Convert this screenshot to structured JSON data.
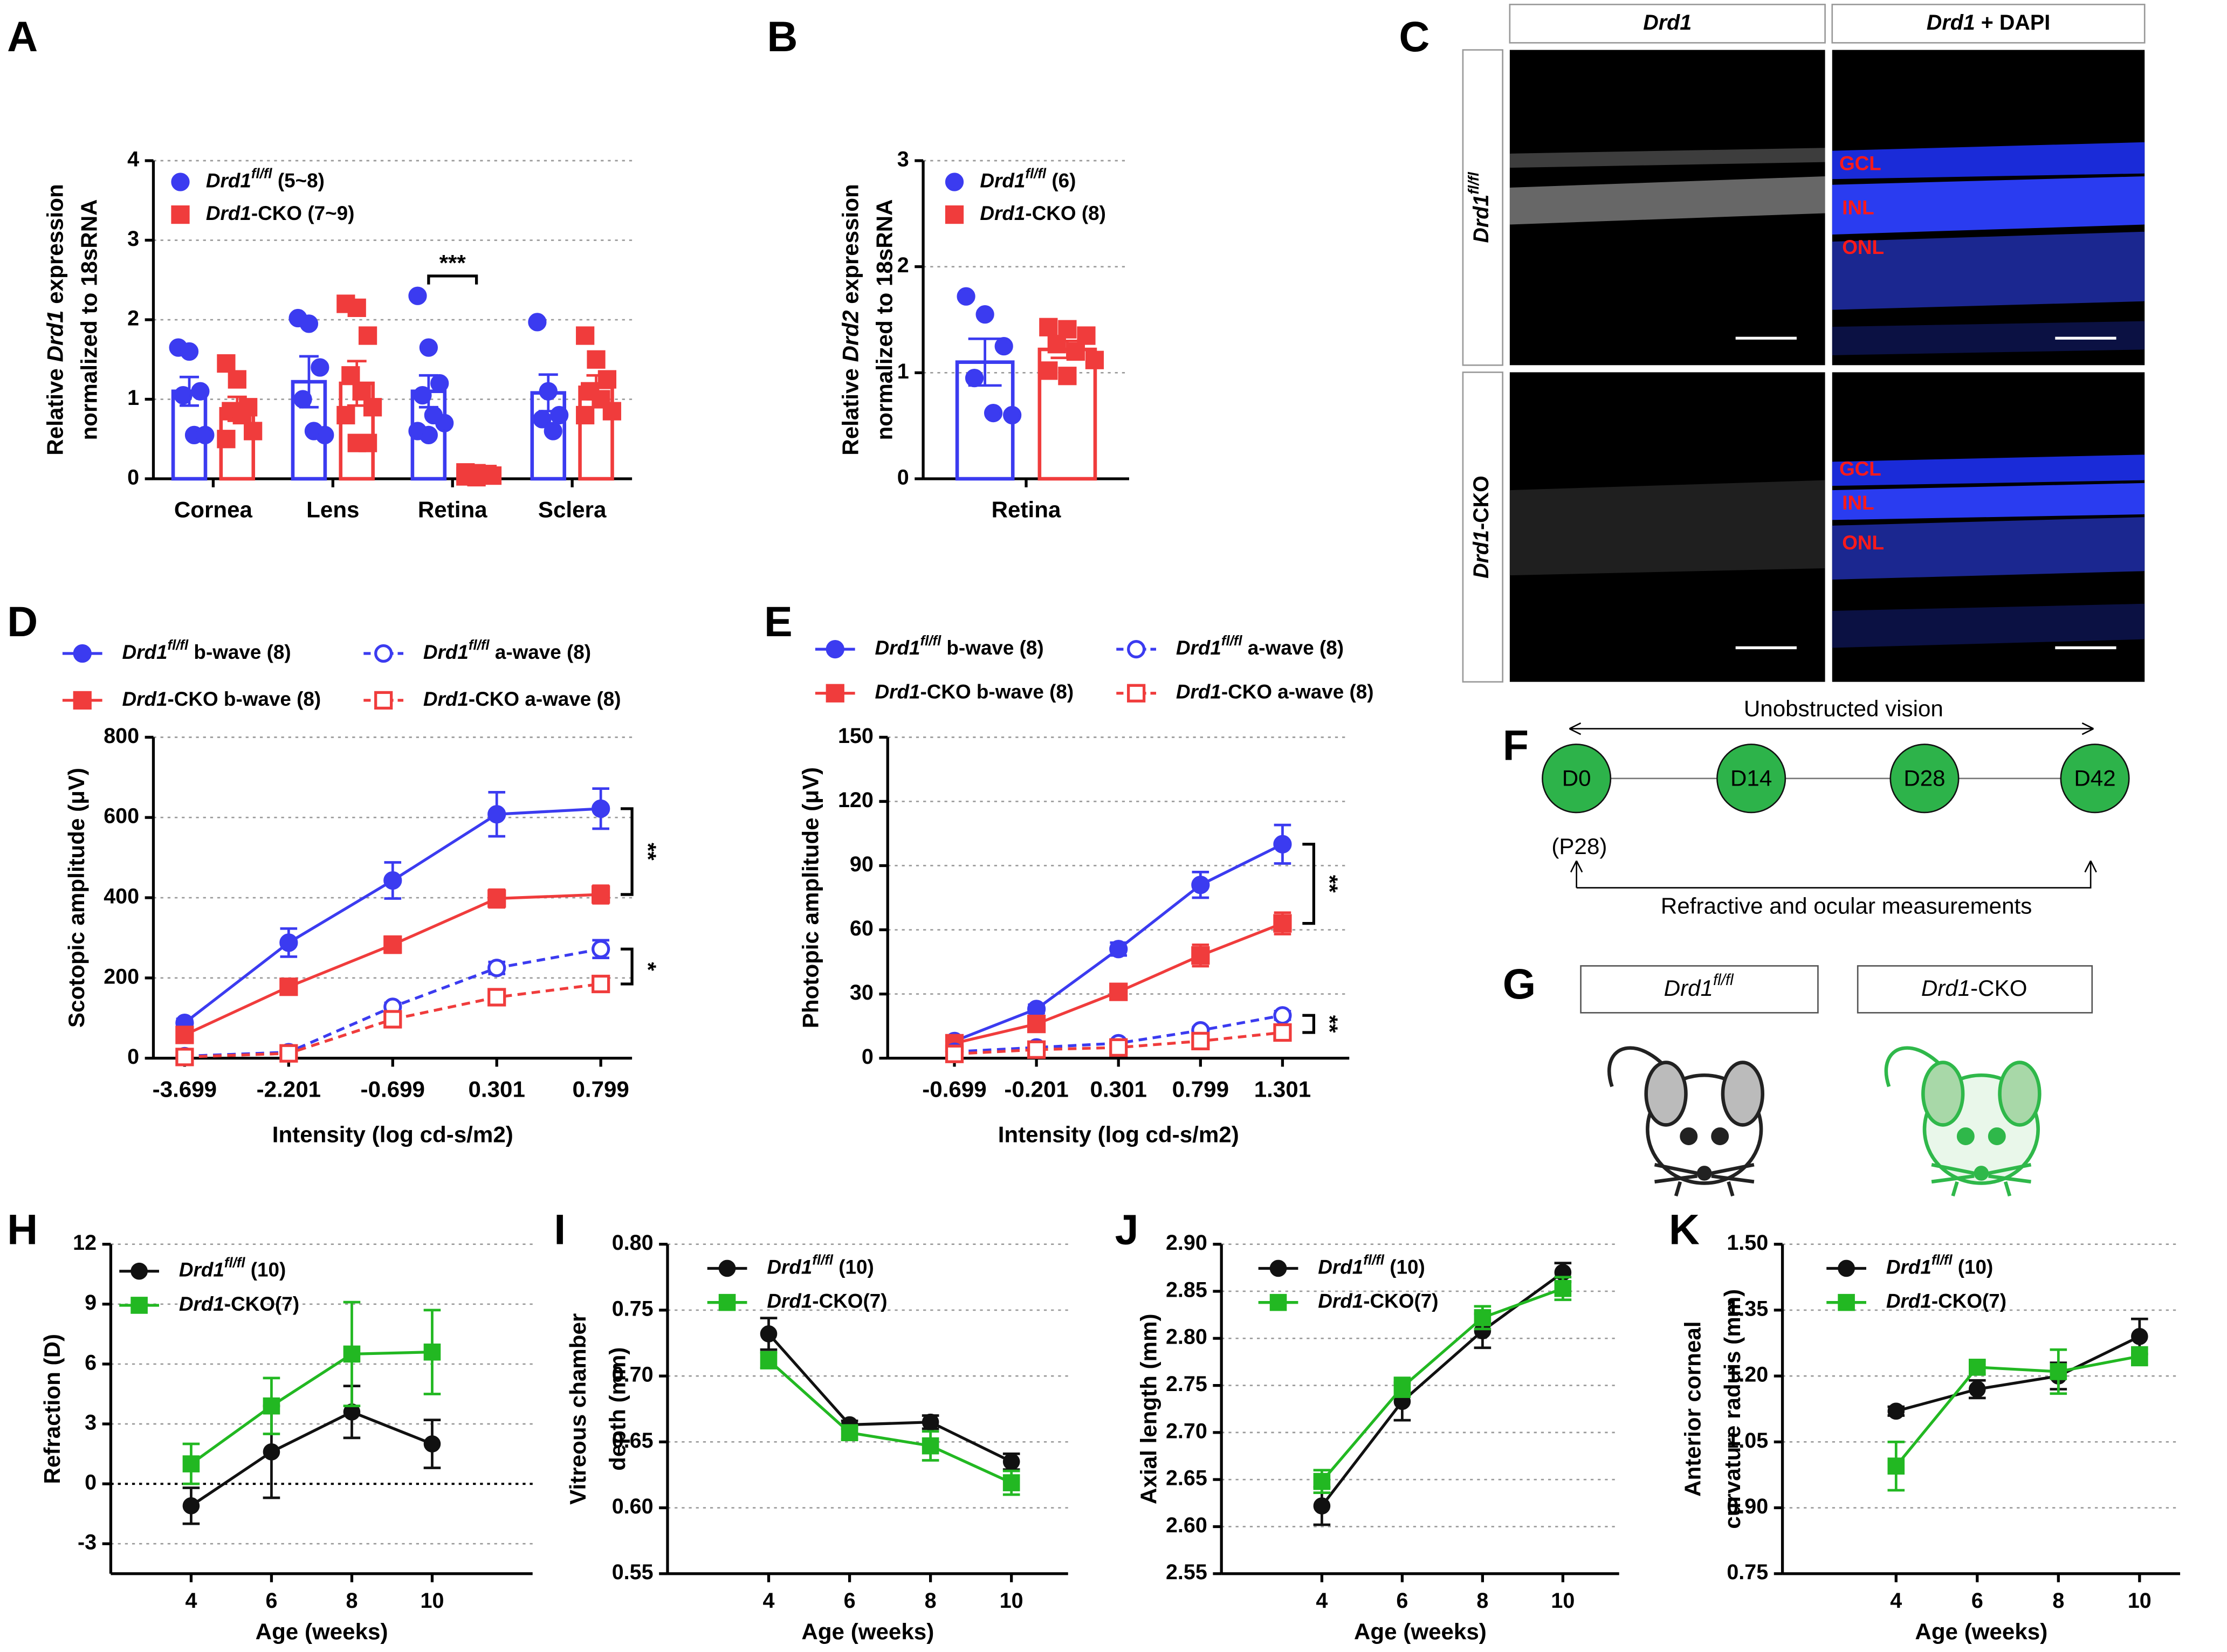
{
  "chart_data": [
    {
      "panel": "A",
      "type": "bar",
      "ylabel": [
        "Relative Drd1 expression",
        "normalized to 18sRNA"
      ],
      "categories": [
        "Cornea",
        "Lens",
        "Retina",
        "Sclera"
      ],
      "ylim": [
        0,
        4
      ],
      "yticks": [
        0,
        1,
        2,
        3,
        4
      ],
      "grid": true,
      "legend": "upper left",
      "series": [
        {
          "name": "Drd1fl/fl (5~8)",
          "color": "#3b3bf0",
          "marker": "circle",
          "filled": true,
          "values": [
            1.1,
            1.22,
            1.1,
            1.08
          ],
          "errors": [
            0.18,
            0.32,
            0.2,
            0.23
          ],
          "points": [
            [
              1.65,
              1.6,
              1.1,
              1.05,
              0.55,
              0.55
            ],
            [
              2.02,
              1.95,
              1.4,
              1.0,
              0.6,
              0.55
            ],
            [
              2.3,
              1.65,
              1.2,
              1.05,
              0.8,
              0.7,
              0.6,
              0.55
            ],
            [
              1.97,
              1.1,
              0.8,
              0.75,
              0.6
            ]
          ]
        },
        {
          "name": "Drd1-CKO (7~9)",
          "color": "#f03c3c",
          "marker": "square",
          "filled": true,
          "values": [
            0.88,
            1.2,
            0.05,
            1.15
          ],
          "errors": [
            0.15,
            0.28,
            0.02,
            0.15
          ],
          "points": [
            [
              1.45,
              1.25,
              0.9,
              0.85,
              0.8,
              0.6,
              0.5
            ],
            [
              2.2,
              2.15,
              1.8,
              1.3,
              1.1,
              0.9,
              0.8,
              0.45,
              0.45
            ],
            [
              0.08,
              0.07,
              0.06,
              0.05,
              0.05,
              0.04,
              0.03,
              0.02
            ],
            [
              1.8,
              1.5,
              1.25,
              1.1,
              1.0,
              0.85,
              0.8
            ]
          ]
        }
      ],
      "annotations": [
        {
          "text": "***"
        }
      ]
    },
    {
      "panel": "B",
      "type": "bar",
      "ylabel": [
        "Relative Drd2 expression",
        "normalized to 18sRNA"
      ],
      "categories": [
        "Retina"
      ],
      "ylim": [
        0,
        3
      ],
      "yticks": [
        0,
        1,
        2,
        3
      ],
      "grid": true,
      "legend": "upper left",
      "series": [
        {
          "name": "Drd1fl/fl (6)",
          "color": "#3b3bf0",
          "marker": "circle",
          "filled": true,
          "values": [
            1.1
          ],
          "errors": [
            0.22
          ],
          "points": [
            [
              1.72,
              1.55,
              1.25,
              0.95,
              0.62,
              0.6
            ]
          ]
        },
        {
          "name": "Drd1-CKO (8)",
          "color": "#f03c3c",
          "marker": "square",
          "filled": true,
          "values": [
            1.22
          ],
          "errors": [
            0.08
          ],
          "points": [
            [
              1.43,
              1.41,
              1.35,
              1.27,
              1.2,
              1.12,
              1.02,
              0.97
            ]
          ]
        }
      ]
    },
    {
      "panel": "D",
      "type": "line",
      "xlabel": "Intensity (log cd-s/m2)",
      "ylabel": "Scotopic amplitude (μV)",
      "categories": [
        "-3.699",
        "-2.201",
        "-0.699",
        "0.301",
        "0.799"
      ],
      "ylim": [
        0,
        800
      ],
      "yticks": [
        0,
        200,
        400,
        600,
        800
      ],
      "grid": true,
      "legend": "top",
      "series": [
        {
          "name": "Drd1fl/fl b-wave (8)",
          "color": "#3b3bf0",
          "marker": "circle",
          "filled": true,
          "dashed": false,
          "values": [
            88,
            288,
            443,
            608,
            622
          ],
          "errors": [
            10,
            35,
            45,
            55,
            50
          ]
        },
        {
          "name": "Drd1-CKO b-wave (8)",
          "color": "#f03c3c",
          "marker": "square",
          "filled": true,
          "dashed": false,
          "values": [
            58,
            178,
            283,
            398,
            408
          ],
          "errors": [
            10,
            15,
            20,
            22,
            22
          ]
        },
        {
          "name": "Drd1fl/fl a-wave (8)",
          "color": "#3b3bf0",
          "marker": "circle",
          "filled": false,
          "dashed": true,
          "values": [
            5,
            15,
            128,
            225,
            272
          ],
          "errors": [
            3,
            5,
            10,
            15,
            22
          ]
        },
        {
          "name": "Drd1-CKO a-wave (8)",
          "color": "#f03c3c",
          "marker": "square",
          "filled": false,
          "dashed": true,
          "values": [
            3,
            12,
            97,
            152,
            185
          ],
          "errors": [
            2,
            4,
            8,
            10,
            10
          ]
        }
      ],
      "annotations": [
        {
          "text": "**"
        },
        {
          "text": "*"
        }
      ]
    },
    {
      "panel": "E",
      "type": "line",
      "xlabel": "Intensity (log cd-s/m2)",
      "ylabel": "Photopic amplitude (μV)",
      "categories": [
        "-0.699",
        "-0.201",
        "0.301",
        "0.799",
        "1.301"
      ],
      "ylim": [
        0,
        150
      ],
      "yticks": [
        0,
        30,
        60,
        90,
        120,
        150
      ],
      "grid": true,
      "legend": "top",
      "series": [
        {
          "name": "Drd1fl/fl b-wave (8)",
          "color": "#3b3bf0",
          "marker": "circle",
          "filled": true,
          "dashed": false,
          "values": [
            8,
            23,
            51,
            81,
            100
          ],
          "errors": [
            2,
            2,
            3,
            6,
            9
          ]
        },
        {
          "name": "Drd1-CKO b-wave (8)",
          "color": "#f03c3c",
          "marker": "square",
          "filled": true,
          "dashed": false,
          "values": [
            7,
            16,
            31,
            48,
            63
          ],
          "errors": [
            2,
            2,
            2,
            5,
            5
          ]
        },
        {
          "name": "Drd1fl/fl a-wave (8)",
          "color": "#3b3bf0",
          "marker": "circle",
          "filled": false,
          "dashed": true,
          "values": [
            3,
            5,
            7,
            13,
            20
          ],
          "errors": [
            1,
            1,
            1,
            1.5,
            2
          ]
        },
        {
          "name": "Drd1-CKO a-wave (8)",
          "color": "#f03c3c",
          "marker": "square",
          "filled": false,
          "dashed": true,
          "values": [
            2,
            4,
            5,
            8,
            12
          ],
          "errors": [
            1,
            1,
            1,
            1,
            1.5
          ]
        }
      ],
      "annotations": [
        {
          "text": "**"
        },
        {
          "text": "**"
        }
      ]
    },
    {
      "panel": "H",
      "type": "line",
      "xlabel": "Age (weeks)",
      "ylabel": "Refraction (D)",
      "x": [
        4,
        6,
        8,
        10
      ],
      "xlim": [
        2,
        12.5
      ],
      "xticks": [
        4,
        6,
        8,
        10
      ],
      "ylim": [
        -4.5,
        12
      ],
      "yticks": [
        -3,
        0,
        3,
        6,
        9,
        12
      ],
      "grid": true,
      "reference_line": 0,
      "legend": "upper left",
      "series": [
        {
          "name": "Drd1fl/fl (10)",
          "color": "#111111",
          "marker": "circle",
          "filled": true,
          "dashed": false,
          "values": [
            -1.1,
            1.6,
            3.6,
            2.0
          ],
          "errors": [
            0.9,
            2.3,
            1.3,
            1.2
          ]
        },
        {
          "name": "Drd1-CKO(7)",
          "color": "#22b822",
          "marker": "square",
          "filled": true,
          "dashed": false,
          "values": [
            1.0,
            3.9,
            6.5,
            6.6
          ],
          "errors": [
            1.0,
            1.4,
            2.6,
            2.1
          ]
        }
      ]
    },
    {
      "panel": "I",
      "type": "line",
      "xlabel": "Age (weeks)",
      "ylabel": [
        "Vitreous chamber",
        "depth (mm)"
      ],
      "x": [
        4,
        6,
        8,
        10
      ],
      "xlim": [
        1.5,
        11.4
      ],
      "xticks": [
        4,
        6,
        8,
        10
      ],
      "ylim": [
        0.55,
        0.8
      ],
      "yticks": [
        0.55,
        {
          "value": 0.6,
          "label": "0.60"
        },
        0.65,
        {
          "value": 0.7,
          "label": "0.70"
        },
        0.75,
        {
          "value": 0.8,
          "label": "0.80"
        }
      ],
      "grid": true,
      "legend": "upper left",
      "series": [
        {
          "name": "Drd1fl/fl (10)",
          "color": "#111111",
          "marker": "circle",
          "filled": true,
          "dashed": false,
          "values": [
            0.732,
            0.663,
            0.665,
            0.635
          ],
          "errors": [
            0.012,
            0.003,
            0.005,
            0.006
          ]
        },
        {
          "name": "Drd1-CKO(7)",
          "color": "#22b822",
          "marker": "square",
          "filled": true,
          "dashed": false,
          "values": [
            0.712,
            0.657,
            0.647,
            0.619
          ],
          "errors": [
            0.006,
            0.005,
            0.011,
            0.009
          ]
        }
      ]
    },
    {
      "panel": "J",
      "type": "line",
      "xlabel": "Age (weeks)",
      "ylabel": "Axial length (mm)",
      "x": [
        4,
        6,
        8,
        10
      ],
      "xlim": [
        1.5,
        11.4
      ],
      "xticks": [
        4,
        6,
        8,
        10
      ],
      "ylim": [
        2.55,
        2.9
      ],
      "yticks": [
        2.55,
        {
          "value": 2.6,
          "label": "2.60"
        },
        2.65,
        {
          "value": 2.7,
          "label": "2.70"
        },
        2.75,
        {
          "value": 2.8,
          "label": "2.80"
        },
        2.85,
        {
          "value": 2.9,
          "label": "2.90"
        }
      ],
      "grid": true,
      "legend": "upper left",
      "series": [
        {
          "name": "Drd1fl/fl (10)",
          "color": "#111111",
          "marker": "circle",
          "filled": true,
          "dashed": false,
          "values": [
            2.622,
            2.733,
            2.808,
            2.87
          ],
          "errors": [
            0.02,
            0.02,
            0.018,
            0.01
          ]
        },
        {
          "name": "Drd1-CKO(7)",
          "color": "#22b822",
          "marker": "square",
          "filled": true,
          "dashed": false,
          "values": [
            2.648,
            2.748,
            2.822,
            2.853
          ],
          "errors": [
            0.012,
            0.01,
            0.012,
            0.012
          ]
        }
      ]
    },
    {
      "panel": "K",
      "type": "line",
      "xlabel": "Age (weeks)",
      "ylabel": [
        "Anterior corneal",
        "curvature raduis (mm)"
      ],
      "x": [
        4,
        6,
        8,
        10
      ],
      "xlim": [
        1.2,
        11
      ],
      "xticks": [
        4,
        6,
        8,
        10
      ],
      "ylim": [
        0.75,
        1.5
      ],
      "yticks": [
        0.75,
        {
          "value": 0.9,
          "label": "0.90"
        },
        1.05,
        {
          "value": 1.2,
          "label": "1.20"
        },
        1.35,
        {
          "value": 1.5,
          "label": "1.50"
        }
      ],
      "grid": true,
      "legend": "upper left",
      "series": [
        {
          "name": "Drd1fl/fl (10)",
          "color": "#111111",
          "marker": "circle",
          "filled": true,
          "dashed": false,
          "values": [
            1.12,
            1.17,
            1.2,
            1.29
          ],
          "errors": [
            0.01,
            0.02,
            0.03,
            0.04
          ]
        },
        {
          "name": "Drd1-CKO(7)",
          "color": "#22b822",
          "marker": "square",
          "filled": true,
          "dashed": false,
          "values": [
            0.995,
            1.22,
            1.21,
            1.245
          ],
          "errors": [
            0.055,
            0.015,
            0.05,
            0.02
          ]
        }
      ]
    }
  ],
  "panel_C": {
    "panel": "C",
    "columns": [
      "Drd1",
      "Drd1 + DAPI"
    ],
    "rows": [
      "Drd1fl/fl",
      "Drd1-CKO"
    ],
    "layers": [
      "GCL",
      "INL",
      "ONL"
    ]
  },
  "panel_F": {
    "panel": "F",
    "top_label": "Unobstructed vision",
    "nodes": [
      "D0",
      "D14",
      "D28",
      "D42"
    ],
    "start_note": "(P28)",
    "bottom_label": "Refractive and ocular measurements"
  },
  "panel_G": {
    "panel": "G",
    "groups": [
      "Drd1fl/fl",
      "Drd1-CKO"
    ]
  }
}
